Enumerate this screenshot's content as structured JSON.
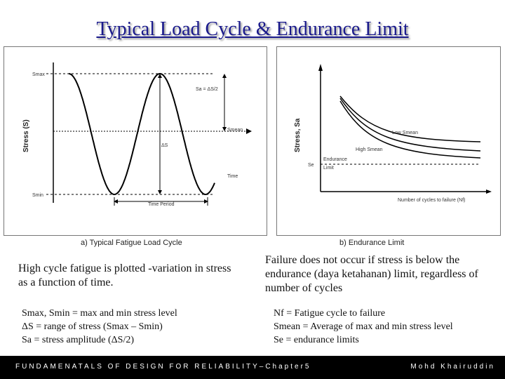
{
  "slide": {
    "title": "Typical Load Cycle & Endurance Limit"
  },
  "diagram_a": {
    "caption": "a) Typical Fatigue Load Cycle",
    "y_axis_label": "Stress (S)",
    "label_smax": "Smax",
    "label_smin": "Smin",
    "label_sa": "Sa = ΔS/2",
    "label_smean": "Smean",
    "label_delta_s": "ΔS",
    "label_time": "Time",
    "label_time_period": "Time Period"
  },
  "diagram_b": {
    "caption": "b) Endurance Limit",
    "y_axis_label": "Stress, Sa",
    "label_low_smean": "Low Smean",
    "label_high_smean": "High Smean",
    "label_endurance": "Endurance",
    "label_limit": "Limit",
    "label_se": "Se",
    "x_axis_label": "Number of cycles to failure (Nf)"
  },
  "text": {
    "left_paragraph": "High cycle fatigue is plotted -variation in stress as a function of time.",
    "right_paragraph": "Failure does not occur if stress is below the endurance (daya ketahanan) limit, regardless of number of cycles",
    "left_def_1": "Smax, Smin = max and min stress level",
    "left_def_2": "ΔS = range of stress (Smax – Smin)",
    "left_def_3": "Sa = stress amplitude (ΔS/2)",
    "right_def_1": "Nf = Fatigue cycle to failure",
    "right_def_2": "Smean = Average of max and min stress level",
    "right_def_3": "Se = endurance limits"
  },
  "footer": {
    "left": "FUNDAMENATALS OF DESIGN FOR RELIABILITY–Chapter5",
    "right": "Mohd Khairuddin"
  }
}
